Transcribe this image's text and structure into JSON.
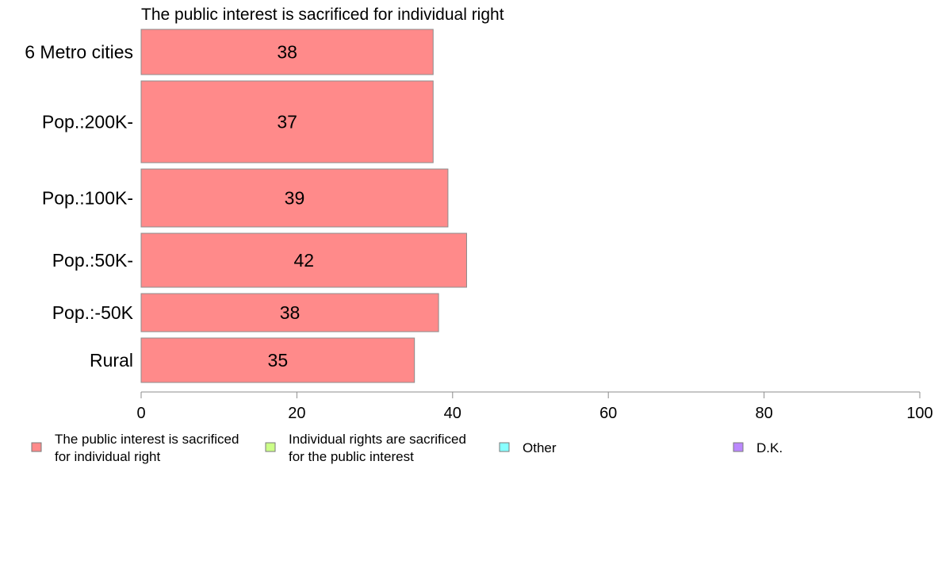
{
  "chart_data": {
    "type": "bar",
    "orientation": "horizontal",
    "title": "The public interest is sacrificed for individual right",
    "xlabel": "",
    "ylabel": "",
    "xlim": [
      0,
      100
    ],
    "x_ticks": [
      0,
      20,
      40,
      60,
      80,
      100
    ],
    "grid": false,
    "categories": [
      "6 Metro cities",
      "Pop.:200K-",
      "Pop.:100K-",
      "Pop.:50K-",
      "Pop.:-50K",
      "Rural"
    ],
    "series": [
      {
        "name": "The public interest is sacrificed for individual right",
        "color": "#ff8a8a",
        "values": [
          37.5,
          37.5,
          39.4,
          41.8,
          38.2,
          35.1
        ],
        "labels": [
          "38",
          "37",
          "39",
          "42",
          "38",
          "35"
        ]
      }
    ],
    "legend": {
      "placement": "bottom",
      "entries": [
        {
          "lines": [
            "The public interest is sacrificed",
            "for individual right"
          ],
          "color": "#ff8a8a"
        },
        {
          "lines": [
            "Individual rights are sacrificed",
            "for the public interest"
          ],
          "color": "#ccff88"
        },
        {
          "lines": [
            "Other"
          ],
          "color": "#88ffff"
        },
        {
          "lines": [
            "D.K."
          ],
          "color": "#bb88ff"
        }
      ]
    }
  }
}
